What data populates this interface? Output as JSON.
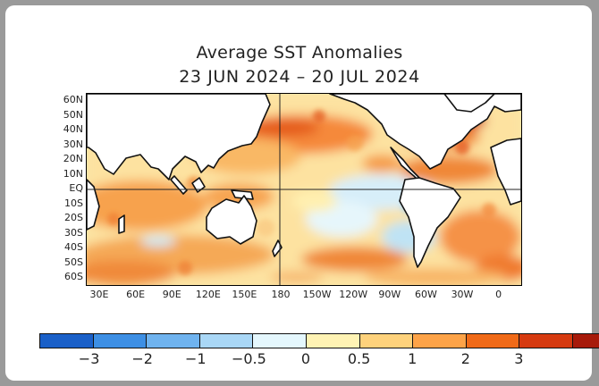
{
  "title_line1": "Average SST Anomalies",
  "title_line2": "23 JUN 2024 – 20 JUL 2024",
  "lat_labels": [
    "60N",
    "50N",
    "40N",
    "30N",
    "20N",
    "10N",
    "EQ",
    "10S",
    "20S",
    "30S",
    "40S",
    "50S",
    "60S"
  ],
  "lon_labels": [
    "30E",
    "60E",
    "90E",
    "120E",
    "150E",
    "180",
    "150W",
    "120W",
    "90W",
    "60W",
    "30W",
    "0"
  ],
  "colorbar": {
    "colors": [
      "#1a60c8",
      "#3d8fe4",
      "#6fb3ef",
      "#a9d7f6",
      "#e4f7fd",
      "#fff3b4",
      "#fed27c",
      "#fda348",
      "#f06a18",
      "#d63a10",
      "#a71a0a"
    ],
    "labels": [
      "−3",
      "−2",
      "−1",
      "−0.5",
      "0",
      "0.5",
      "1",
      "2",
      "3"
    ]
  }
}
